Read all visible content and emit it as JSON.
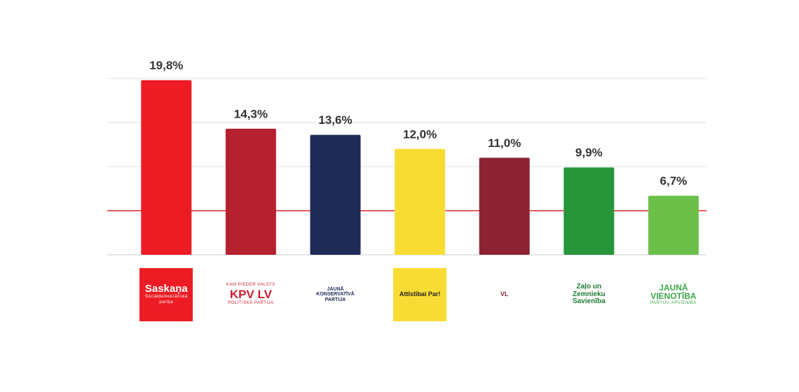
{
  "chart_data": {
    "type": "bar",
    "categories": [
      "Saskaņa",
      "KPV LV",
      "JAUNĀ KONSERVATĪVĀ PARTIJA",
      "Attīstībai Par!",
      "VL",
      "Zaļo un Zemnieku Savienība",
      "JAUNĀ VIENOTĪBA"
    ],
    "category_notes": [
      [
        "Sociāldemokrātiskā partija"
      ],
      [
        "KAM PIEDER VALSTS",
        "POLITISKĀ PARTIJA"
      ],
      null,
      null,
      null,
      null,
      [
        "PARTIJU APVIENĪBA"
      ]
    ],
    "values": [
      19.8,
      14.3,
      13.6,
      12.0,
      11.0,
      9.9,
      6.7
    ],
    "value_labels": [
      "19,8%",
      "14,3%",
      "13,6%",
      "12,0%",
      "11,0%",
      "9,9%",
      "6,7%"
    ],
    "colors": [
      "#ed1c24",
      "#b5212f",
      "#1f2a56",
      "#f9dc33",
      "#8b2332",
      "#27953a",
      "#6cc04a"
    ],
    "ylim": [
      0,
      20
    ],
    "yticks": [
      0,
      5,
      10,
      15,
      20
    ],
    "grid": true,
    "threshold": 5,
    "threshold_color": "#e0262b"
  }
}
